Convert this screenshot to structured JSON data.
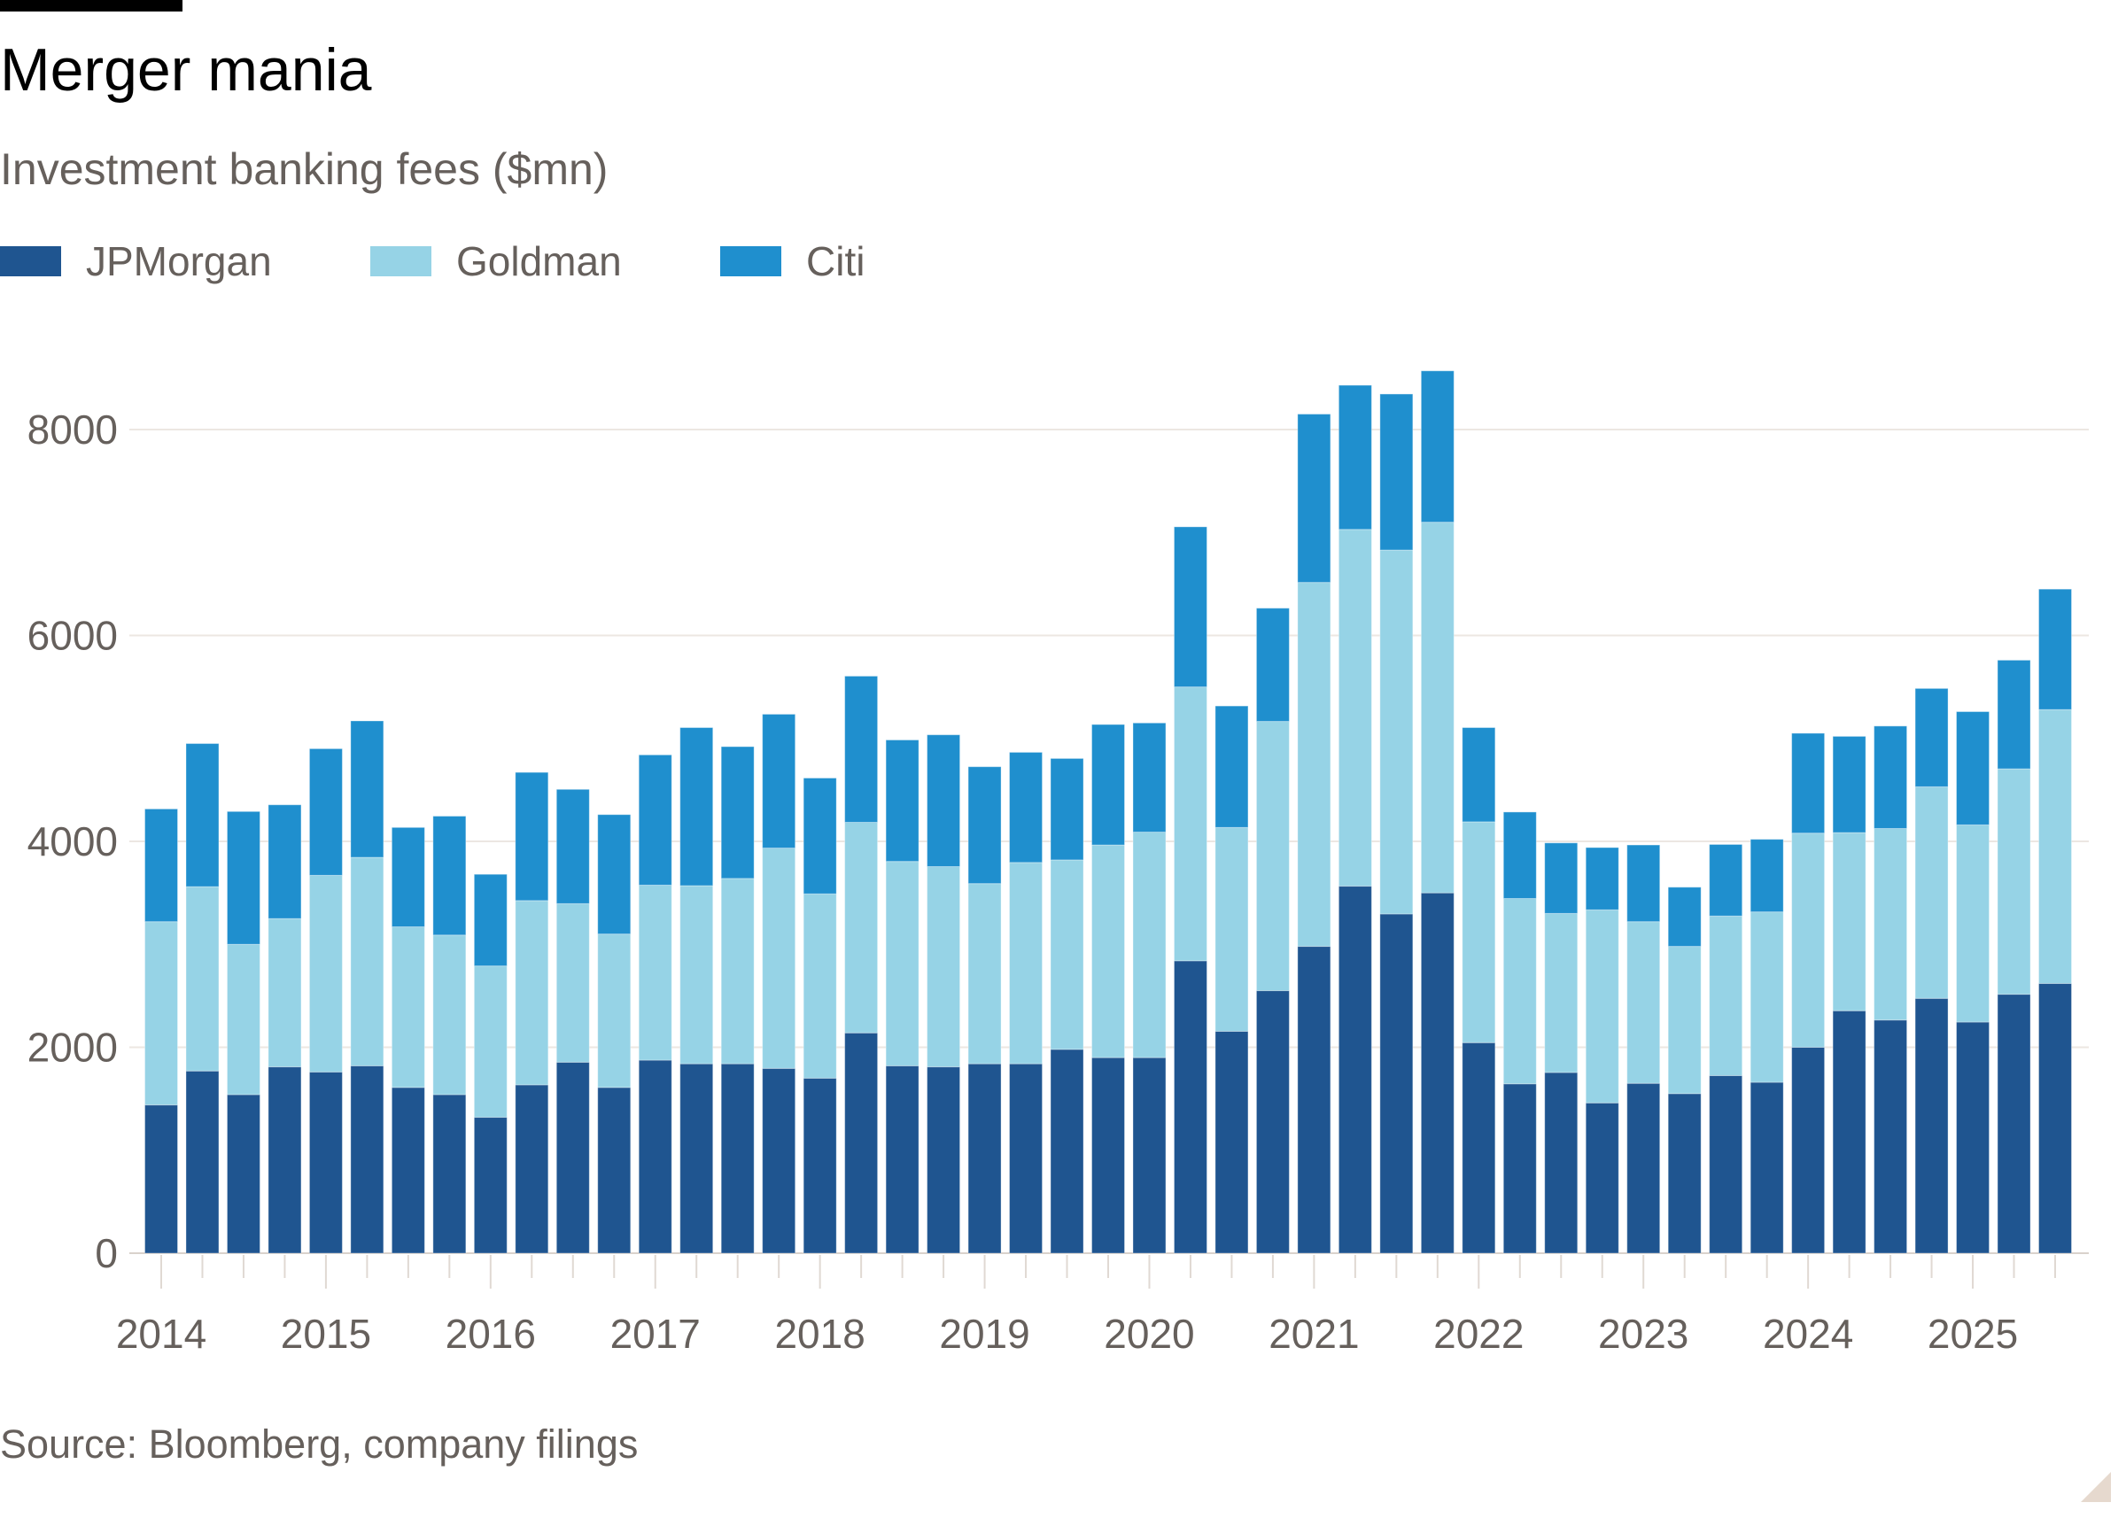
{
  "header": {
    "title": "Merger mania",
    "subtitle": "Investment banking fees ($mn)"
  },
  "legend": [
    {
      "label": "JPMorgan",
      "color": "#1f5590"
    },
    {
      "label": "Goldman",
      "color": "#96d3e6"
    },
    {
      "label": "Citi",
      "color": "#1f8fce"
    }
  ],
  "footer": {
    "source": "Source: Bloomberg, company filings"
  },
  "chart_data": {
    "type": "bar",
    "stacked": true,
    "title": "Merger mania",
    "subtitle": "Investment banking fees ($mn)",
    "xlabel": "",
    "ylabel": "",
    "ylim": [
      0,
      8600
    ],
    "yticks": [
      0,
      2000,
      4000,
      6000,
      8000
    ],
    "grid": true,
    "legend_position": "top-left",
    "x_tick_labels": [
      "2014",
      "2015",
      "2016",
      "2017",
      "2018",
      "2019",
      "2020",
      "2021",
      "2022",
      "2023",
      "2024",
      "2025"
    ],
    "categories": [
      "2014 Q1",
      "2014 Q2",
      "2014 Q3",
      "2014 Q4",
      "2015 Q1",
      "2015 Q2",
      "2015 Q3",
      "2015 Q4",
      "2016 Q1",
      "2016 Q2",
      "2016 Q3",
      "2016 Q4",
      "2017 Q1",
      "2017 Q2",
      "2017 Q3",
      "2017 Q4",
      "2018 Q1",
      "2018 Q2",
      "2018 Q3",
      "2018 Q4",
      "2019 Q1",
      "2019 Q2",
      "2019 Q3",
      "2019 Q4",
      "2020 Q1",
      "2020 Q2",
      "2020 Q3",
      "2020 Q4",
      "2021 Q1",
      "2021 Q2",
      "2021 Q3",
      "2021 Q4",
      "2022 Q1",
      "2022 Q2",
      "2022 Q3",
      "2022 Q4",
      "2023 Q1",
      "2023 Q2",
      "2023 Q3",
      "2023 Q4",
      "2024 Q1",
      "2024 Q2",
      "2024 Q3",
      "2024 Q4",
      "2025 Q1",
      "2025 Q2",
      "2025 Q3"
    ],
    "series": [
      {
        "name": "JPMorgan",
        "color": "#1f5590",
        "values": [
          1440,
          1770,
          1540,
          1810,
          1760,
          1820,
          1610,
          1540,
          1320,
          1635,
          1855,
          1610,
          1875,
          1840,
          1840,
          1795,
          1700,
          2140,
          1820,
          1810,
          1840,
          1840,
          1980,
          1900,
          1900,
          2840,
          2155,
          2550,
          2980,
          3565,
          3295,
          3500,
          2045,
          1645,
          1755,
          1460,
          1650,
          1550,
          1725,
          1660,
          2000,
          2355,
          2265,
          2475,
          2245,
          2515,
          2620
        ]
      },
      {
        "name": "Goldman",
        "color": "#96d3e6",
        "values": [
          1780,
          1790,
          1460,
          1440,
          1910,
          2025,
          1560,
          1550,
          1470,
          1790,
          1540,
          1490,
          1700,
          1730,
          1800,
          2140,
          1790,
          2045,
          1985,
          1945,
          1750,
          1955,
          1840,
          2065,
          2190,
          2660,
          1980,
          2615,
          3535,
          3465,
          3535,
          3600,
          2145,
          1800,
          1545,
          1875,
          1570,
          1430,
          1550,
          1655,
          2080,
          1730,
          1860,
          2055,
          1915,
          2190,
          2660
        ]
      },
      {
        "name": "Citi",
        "color": "#1f8fce",
        "values": [
          1095,
          1390,
          1290,
          1105,
          1230,
          1325,
          965,
          1155,
          890,
          1245,
          1110,
          1160,
          1265,
          1535,
          1280,
          1300,
          1125,
          1420,
          1180,
          1280,
          1135,
          1070,
          985,
          1170,
          1060,
          1555,
          1180,
          1100,
          1635,
          1400,
          1515,
          1470,
          915,
          840,
          685,
          605,
          745,
          575,
          695,
          705,
          970,
          935,
          995,
          955,
          1100,
          1055,
          1170
        ]
      }
    ]
  }
}
